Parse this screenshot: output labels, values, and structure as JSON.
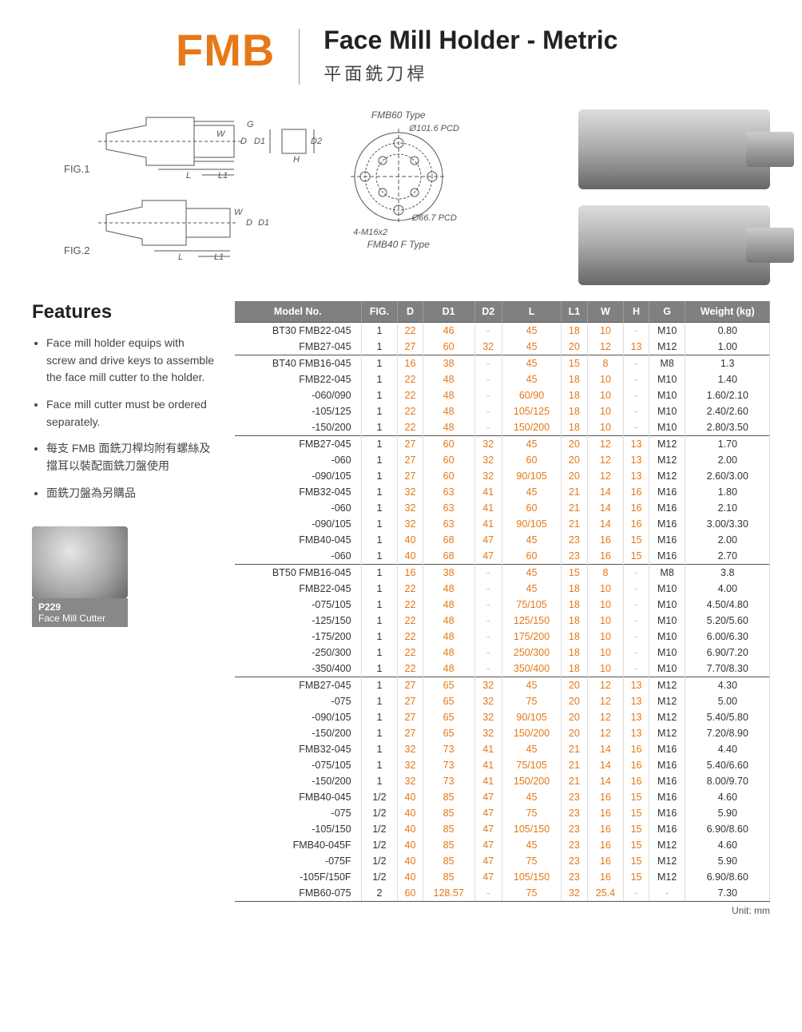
{
  "header": {
    "logo": "FMB",
    "title_en": "Face Mill Holder - Metric",
    "title_zh": "平面銑刀桿"
  },
  "figs": {
    "fig1": "FIG.1",
    "fig2": "FIG.2",
    "fmb60": "FMB60 Type",
    "pcd1": "Ø101.6 PCD",
    "pcd2": "Ø66.7 PCD",
    "thread": "4-M16x2",
    "fmb40f": "FMB40 F Type",
    "labels": {
      "G": "G",
      "D": "D",
      "D1": "D1",
      "D2": "D2",
      "W": "W",
      "H": "H",
      "L": "L",
      "L1": "L1"
    }
  },
  "features": {
    "heading": "Features",
    "items": [
      "Face mill holder equips with screw and drive keys to assemble the face mill cutter to the holder.",
      "Face mill cutter must be ordered separately.",
      "每支 FMB 面銑刀桿均附有螺絲及擋耳以裝配面銑刀盤使用",
      "面銑刀盤為另購品"
    ],
    "ref": {
      "code": "P229",
      "name": "Face Mill Cutter"
    }
  },
  "table": {
    "columns": [
      "Model No.",
      "FIG.",
      "D",
      "D1",
      "D2",
      "L",
      "L1",
      "W",
      "H",
      "G",
      "Weight (kg)"
    ],
    "col_align": [
      "right",
      "center",
      "center",
      "center",
      "center",
      "center",
      "center",
      "center",
      "center",
      "center",
      "center"
    ],
    "col_color": [
      "blk",
      "blk",
      "num",
      "num",
      "num",
      "num",
      "num",
      "num",
      "num",
      "blk",
      "blk"
    ],
    "unit": "Unit: mm",
    "groups": [
      {
        "rows": [
          [
            "BT30 FMB22-045",
            "1",
            "22",
            "46",
            "-",
            "45",
            "18",
            "10",
            "-",
            "M10",
            "0.80"
          ],
          [
            "FMB27-045",
            "1",
            "27",
            "60",
            "32",
            "45",
            "20",
            "12",
            "13",
            "M12",
            "1.00"
          ]
        ]
      },
      {
        "rows": [
          [
            "BT40 FMB16-045",
            "1",
            "16",
            "38",
            "-",
            "45",
            "15",
            "8",
            "-",
            "M8",
            "1.3"
          ],
          [
            "FMB22-045",
            "1",
            "22",
            "48",
            "-",
            "45",
            "18",
            "10",
            "-",
            "M10",
            "1.40"
          ],
          [
            "-060/090",
            "1",
            "22",
            "48",
            "-",
            "60/90",
            "18",
            "10",
            "-",
            "M10",
            "1.60/2.10"
          ],
          [
            "-105/125",
            "1",
            "22",
            "48",
            "-",
            "105/125",
            "18",
            "10",
            "-",
            "M10",
            "2.40/2.60"
          ],
          [
            "-150/200",
            "1",
            "22",
            "48",
            "-",
            "150/200",
            "18",
            "10",
            "-",
            "M10",
            "2.80/3.50"
          ]
        ]
      },
      {
        "rows": [
          [
            "FMB27-045",
            "1",
            "27",
            "60",
            "32",
            "45",
            "20",
            "12",
            "13",
            "M12",
            "1.70"
          ],
          [
            "-060",
            "1",
            "27",
            "60",
            "32",
            "60",
            "20",
            "12",
            "13",
            "M12",
            "2.00"
          ],
          [
            "-090/105",
            "1",
            "27",
            "60",
            "32",
            "90/105",
            "20",
            "12",
            "13",
            "M12",
            "2.60/3.00"
          ],
          [
            "FMB32-045",
            "1",
            "32",
            "63",
            "41",
            "45",
            "21",
            "14",
            "16",
            "M16",
            "1.80"
          ],
          [
            "-060",
            "1",
            "32",
            "63",
            "41",
            "60",
            "21",
            "14",
            "16",
            "M16",
            "2.10"
          ],
          [
            "-090/105",
            "1",
            "32",
            "63",
            "41",
            "90/105",
            "21",
            "14",
            "16",
            "M16",
            "3.00/3.30"
          ],
          [
            "FMB40-045",
            "1",
            "40",
            "68",
            "47",
            "45",
            "23",
            "16",
            "15",
            "M16",
            "2.00"
          ],
          [
            "-060",
            "1",
            "40",
            "68",
            "47",
            "60",
            "23",
            "16",
            "15",
            "M16",
            "2.70"
          ]
        ]
      },
      {
        "rows": [
          [
            "BT50 FMB16-045",
            "1",
            "16",
            "38",
            "-",
            "45",
            "15",
            "8",
            "-",
            "M8",
            "3.8"
          ],
          [
            "FMB22-045",
            "1",
            "22",
            "48",
            "-",
            "45",
            "18",
            "10",
            "-",
            "M10",
            "4.00"
          ],
          [
            "-075/105",
            "1",
            "22",
            "48",
            "-",
            "75/105",
            "18",
            "10",
            "-",
            "M10",
            "4.50/4.80"
          ],
          [
            "-125/150",
            "1",
            "22",
            "48",
            "-",
            "125/150",
            "18",
            "10",
            "-",
            "M10",
            "5.20/5.60"
          ],
          [
            "-175/200",
            "1",
            "22",
            "48",
            "-",
            "175/200",
            "18",
            "10",
            "-",
            "M10",
            "6.00/6.30"
          ],
          [
            "-250/300",
            "1",
            "22",
            "48",
            "-",
            "250/300",
            "18",
            "10",
            "-",
            "M10",
            "6.90/7.20"
          ],
          [
            "-350/400",
            "1",
            "22",
            "48",
            "-",
            "350/400",
            "18",
            "10",
            "-",
            "M10",
            "7.70/8.30"
          ]
        ]
      },
      {
        "rows": [
          [
            "FMB27-045",
            "1",
            "27",
            "65",
            "32",
            "45",
            "20",
            "12",
            "13",
            "M12",
            "4.30"
          ],
          [
            "-075",
            "1",
            "27",
            "65",
            "32",
            "75",
            "20",
            "12",
            "13",
            "M12",
            "5.00"
          ],
          [
            "-090/105",
            "1",
            "27",
            "65",
            "32",
            "90/105",
            "20",
            "12",
            "13",
            "M12",
            "5.40/5.80"
          ],
          [
            "-150/200",
            "1",
            "27",
            "65",
            "32",
            "150/200",
            "20",
            "12",
            "13",
            "M12",
            "7.20/8.90"
          ],
          [
            "FMB32-045",
            "1",
            "32",
            "73",
            "41",
            "45",
            "21",
            "14",
            "16",
            "M16",
            "4.40"
          ],
          [
            "-075/105",
            "1",
            "32",
            "73",
            "41",
            "75/105",
            "21",
            "14",
            "16",
            "M16",
            "5.40/6.60"
          ],
          [
            "-150/200",
            "1",
            "32",
            "73",
            "41",
            "150/200",
            "21",
            "14",
            "16",
            "M16",
            "8.00/9.70"
          ],
          [
            "FMB40-045",
            "1/2",
            "40",
            "85",
            "47",
            "45",
            "23",
            "16",
            "15",
            "M16",
            "4.60"
          ],
          [
            "-075",
            "1/2",
            "40",
            "85",
            "47",
            "75",
            "23",
            "16",
            "15",
            "M16",
            "5.90"
          ],
          [
            "-105/150",
            "1/2",
            "40",
            "85",
            "47",
            "105/150",
            "23",
            "16",
            "15",
            "M16",
            "6.90/8.60"
          ],
          [
            "FMB40-045F",
            "1/2",
            "40",
            "85",
            "47",
            "45",
            "23",
            "16",
            "15",
            "M12",
            "4.60"
          ],
          [
            "-075F",
            "1/2",
            "40",
            "85",
            "47",
            "75",
            "23",
            "16",
            "15",
            "M12",
            "5.90"
          ],
          [
            "-105F/150F",
            "1/2",
            "40",
            "85",
            "47",
            "105/150",
            "23",
            "16",
            "15",
            "M12",
            "6.90/8.60"
          ],
          [
            "FMB60-075",
            "2",
            "60",
            "128.57",
            "-",
            "75",
            "32",
            "25.4",
            "-",
            "-",
            "7.30"
          ]
        ]
      }
    ]
  },
  "colors": {
    "accent": "#e67817",
    "header_bg": "#808080"
  }
}
